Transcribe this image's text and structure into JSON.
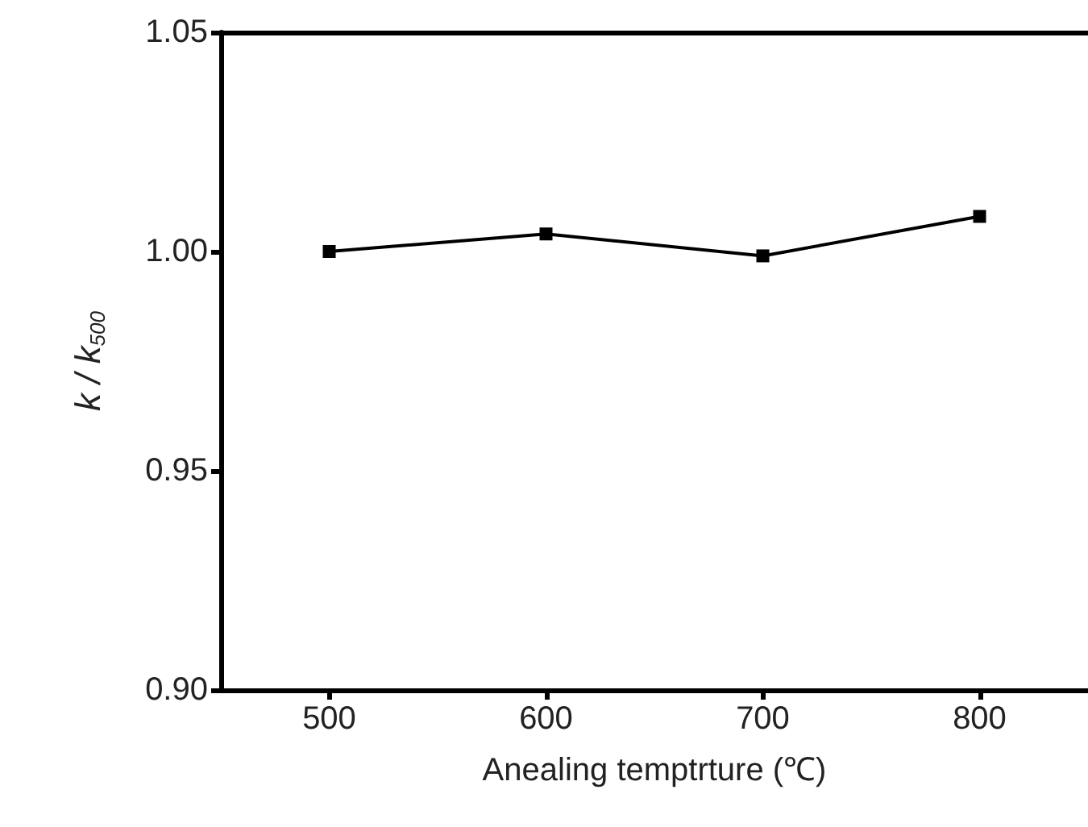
{
  "chart_data": {
    "type": "line",
    "xlabel": "Anealing temptrture (℃)",
    "ylabel": "k / k$_{500}$",
    "x": [
      500,
      600,
      700,
      800
    ],
    "series": [
      {
        "color": "#000000",
        "values": [
          1.0,
          1.004,
          0.999,
          1.008
        ]
      }
    ],
    "xlim": [
      450,
      850
    ],
    "xticks": [
      500,
      600,
      700,
      800
    ],
    "ylim": [
      0.9,
      1.05
    ],
    "yticks": [
      {
        "value": 0.9,
        "label": "0.90"
      },
      {
        "value": 0.95,
        "label": "0.95"
      },
      {
        "value": 1.0,
        "label": "1.00"
      },
      {
        "value": 1.05,
        "label": "1.05"
      }
    ],
    "marker": "square",
    "line_style": "solid",
    "grid": false
  }
}
